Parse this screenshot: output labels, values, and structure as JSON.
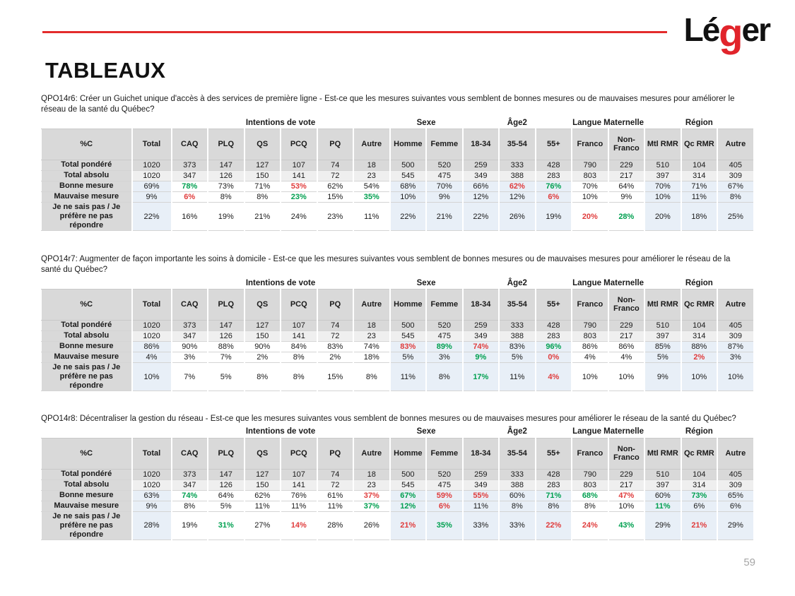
{
  "page": {
    "title": "TABLEAUX",
    "page_number": "59",
    "logo": {
      "part1": "Lé",
      "part2": "g",
      "part3": "er"
    }
  },
  "colors": {
    "accent_line_red": "#e32b2b",
    "logo_red": "#e1242b",
    "positive_green": "#00a050",
    "negative_red": "#e03c3c",
    "header_gray": "#d9d9d9",
    "row_light_gray": "#efefef",
    "column_blue": "#e8eff7",
    "page_number_gray": "#a6a6a6"
  },
  "table_style": {
    "blue_columns": [
      0,
      7,
      8,
      9,
      10,
      11,
      14,
      15,
      16
    ]
  },
  "chart_data": [
    {
      "type": "table",
      "question": "QPO14r6: Créer un Guichet unique d'accès à des services de première ligne - Est-ce que les mesures suivantes vous semblent de bonnes mesures ou de mauvaises mesures pour améliorer le réseau de la santé du Québec?",
      "group_headers": [
        {
          "label": "",
          "span": 1
        },
        {
          "label": "",
          "span": 1
        },
        {
          "label": "Intentions de vote",
          "span": 6
        },
        {
          "label": "Sexe",
          "span": 2
        },
        {
          "label": "Âge2",
          "span": 3
        },
        {
          "label": "Langue Maternelle",
          "span": 2
        },
        {
          "label": "Région",
          "span": 3
        }
      ],
      "columns": [
        "%C",
        "Total",
        "CAQ",
        "PLQ",
        "QS",
        "PCQ",
        "PQ",
        "Autre",
        "Homme",
        "Femme",
        "18-34",
        "35-54",
        "55+",
        "Franco",
        "Non-Franco",
        "Mtl RMR",
        "Qc RMR",
        "Autre"
      ],
      "rows": [
        {
          "label": "Total pondéré",
          "shade": "dark",
          "values": [
            "1020",
            "373",
            "147",
            "127",
            "107",
            "74",
            "18",
            "500",
            "520",
            "259",
            "333",
            "428",
            "790",
            "229",
            "510",
            "104",
            "405"
          ]
        },
        {
          "label": "Total absolu",
          "shade": "light",
          "values": [
            "1020",
            "347",
            "126",
            "150",
            "141",
            "72",
            "23",
            "545",
            "475",
            "349",
            "388",
            "283",
            "803",
            "217",
            "397",
            "314",
            "309"
          ]
        },
        {
          "label": "Bonne mesure",
          "values": [
            "69%",
            "78%",
            "73%",
            "71%",
            "53%",
            "62%",
            "54%",
            "68%",
            "70%",
            "66%",
            "62%",
            "76%",
            "70%",
            "64%",
            "70%",
            "71%",
            "67%"
          ],
          "colors": [
            "",
            "g",
            "",
            "",
            "r",
            "",
            "",
            "",
            "",
            "",
            "r",
            "g",
            "",
            "",
            "",
            "",
            ""
          ]
        },
        {
          "label": "Mauvaise mesure",
          "values": [
            "9%",
            "6%",
            "8%",
            "8%",
            "23%",
            "15%",
            "35%",
            "10%",
            "9%",
            "12%",
            "12%",
            "6%",
            "10%",
            "9%",
            "10%",
            "11%",
            "8%"
          ],
          "colors": [
            "",
            "r",
            "",
            "",
            "g",
            "",
            "g",
            "",
            "",
            "",
            "",
            "r",
            "",
            "",
            "",
            "",
            ""
          ]
        },
        {
          "label": "Je ne sais pas / Je préfère ne pas répondre",
          "tall": true,
          "values": [
            "22%",
            "16%",
            "19%",
            "21%",
            "24%",
            "23%",
            "11%",
            "22%",
            "21%",
            "22%",
            "26%",
            "19%",
            "20%",
            "28%",
            "20%",
            "18%",
            "25%"
          ],
          "colors": [
            "",
            "",
            "",
            "",
            "",
            "",
            "",
            "",
            "",
            "",
            "",
            "",
            "r",
            "g",
            "",
            "",
            ""
          ]
        }
      ]
    },
    {
      "type": "table",
      "question": "QPO14r7: Augmenter de façon importante les soins à domicile - Est-ce que les mesures suivantes vous semblent de bonnes mesures ou de mauvaises mesures pour améliorer le réseau de la santé du Québec?",
      "group_headers": [
        {
          "label": "",
          "span": 1
        },
        {
          "label": "",
          "span": 1
        },
        {
          "label": "Intentions de vote",
          "span": 6
        },
        {
          "label": "Sexe",
          "span": 2
        },
        {
          "label": "Âge2",
          "span": 3
        },
        {
          "label": "Langue Maternelle",
          "span": 2
        },
        {
          "label": "Région",
          "span": 3
        }
      ],
      "columns": [
        "%C",
        "Total",
        "CAQ",
        "PLQ",
        "QS",
        "PCQ",
        "PQ",
        "Autre",
        "Homme",
        "Femme",
        "18-34",
        "35-54",
        "55+",
        "Franco",
        "Non-Franco",
        "Mtl RMR",
        "Qc RMR",
        "Autre"
      ],
      "rows": [
        {
          "label": "Total pondéré",
          "shade": "dark",
          "values": [
            "1020",
            "373",
            "147",
            "127",
            "107",
            "74",
            "18",
            "500",
            "520",
            "259",
            "333",
            "428",
            "790",
            "229",
            "510",
            "104",
            "405"
          ]
        },
        {
          "label": "Total absolu",
          "shade": "light",
          "values": [
            "1020",
            "347",
            "126",
            "150",
            "141",
            "72",
            "23",
            "545",
            "475",
            "349",
            "388",
            "283",
            "803",
            "217",
            "397",
            "314",
            "309"
          ]
        },
        {
          "label": "Bonne mesure",
          "values": [
            "86%",
            "90%",
            "88%",
            "90%",
            "84%",
            "83%",
            "74%",
            "83%",
            "89%",
            "74%",
            "83%",
            "96%",
            "86%",
            "86%",
            "85%",
            "88%",
            "87%"
          ],
          "colors": [
            "",
            "",
            "",
            "",
            "",
            "",
            "",
            "r",
            "g",
            "r",
            "",
            "g",
            "",
            "",
            "",
            "",
            ""
          ]
        },
        {
          "label": "Mauvaise mesure",
          "values": [
            "4%",
            "3%",
            "7%",
            "2%",
            "8%",
            "2%",
            "18%",
            "5%",
            "3%",
            "9%",
            "5%",
            "0%",
            "4%",
            "4%",
            "5%",
            "2%",
            "3%"
          ],
          "colors": [
            "",
            "",
            "",
            "",
            "",
            "",
            "",
            "",
            "",
            "g",
            "",
            "r",
            "",
            "",
            "",
            "r",
            ""
          ]
        },
        {
          "label": "Je ne sais pas / Je préfère ne pas répondre",
          "tall": true,
          "values": [
            "10%",
            "7%",
            "5%",
            "8%",
            "8%",
            "15%",
            "8%",
            "11%",
            "8%",
            "17%",
            "11%",
            "4%",
            "10%",
            "10%",
            "9%",
            "10%",
            "10%"
          ],
          "colors": [
            "",
            "",
            "",
            "",
            "",
            "",
            "",
            "",
            "",
            "g",
            "",
            "r",
            "",
            "",
            "",
            "",
            ""
          ]
        }
      ]
    },
    {
      "type": "table",
      "question": "QPO14r8: Décentraliser la gestion du réseau - Est-ce que les mesures suivantes vous semblent de bonnes mesures ou de mauvaises mesures pour améliorer le réseau de la santé du Québec?",
      "group_headers": [
        {
          "label": "",
          "span": 1
        },
        {
          "label": "",
          "span": 1
        },
        {
          "label": "Intentions de vote",
          "span": 6
        },
        {
          "label": "Sexe",
          "span": 2
        },
        {
          "label": "Âge2",
          "span": 3
        },
        {
          "label": "Langue Maternelle",
          "span": 2
        },
        {
          "label": "Région",
          "span": 3
        }
      ],
      "columns": [
        "%C",
        "Total",
        "CAQ",
        "PLQ",
        "QS",
        "PCQ",
        "PQ",
        "Autre",
        "Homme",
        "Femme",
        "18-34",
        "35-54",
        "55+",
        "Franco",
        "Non-Franco",
        "Mtl RMR",
        "Qc RMR",
        "Autre"
      ],
      "rows": [
        {
          "label": "Total pondéré",
          "shade": "dark",
          "values": [
            "1020",
            "373",
            "147",
            "127",
            "107",
            "74",
            "18",
            "500",
            "520",
            "259",
            "333",
            "428",
            "790",
            "229",
            "510",
            "104",
            "405"
          ]
        },
        {
          "label": "Total absolu",
          "shade": "light",
          "values": [
            "1020",
            "347",
            "126",
            "150",
            "141",
            "72",
            "23",
            "545",
            "475",
            "349",
            "388",
            "283",
            "803",
            "217",
            "397",
            "314",
            "309"
          ]
        },
        {
          "label": "Bonne mesure",
          "values": [
            "63%",
            "74%",
            "64%",
            "62%",
            "76%",
            "61%",
            "37%",
            "67%",
            "59%",
            "55%",
            "60%",
            "71%",
            "68%",
            "47%",
            "60%",
            "73%",
            "65%"
          ],
          "colors": [
            "",
            "g",
            "",
            "",
            "",
            "",
            "r",
            "g",
            "r",
            "r",
            "",
            "g",
            "g",
            "r",
            "",
            "g",
            ""
          ]
        },
        {
          "label": "Mauvaise mesure",
          "values": [
            "9%",
            "8%",
            "5%",
            "11%",
            "11%",
            "11%",
            "37%",
            "12%",
            "6%",
            "11%",
            "8%",
            "8%",
            "8%",
            "10%",
            "11%",
            "6%",
            "6%"
          ],
          "colors": [
            "",
            "",
            "",
            "",
            "",
            "",
            "g",
            "g",
            "r",
            "",
            "",
            "",
            "",
            "",
            "g",
            "",
            ""
          ]
        },
        {
          "label": "Je ne sais pas / Je préfère ne pas répondre",
          "tall": true,
          "values": [
            "28%",
            "19%",
            "31%",
            "27%",
            "14%",
            "28%",
            "26%",
            "21%",
            "35%",
            "33%",
            "33%",
            "22%",
            "24%",
            "43%",
            "29%",
            "21%",
            "29%"
          ],
          "colors": [
            "",
            "",
            "g",
            "",
            "r",
            "",
            "",
            "r",
            "g",
            "",
            "",
            "r",
            "r",
            "g",
            "",
            "r",
            ""
          ]
        }
      ]
    }
  ]
}
